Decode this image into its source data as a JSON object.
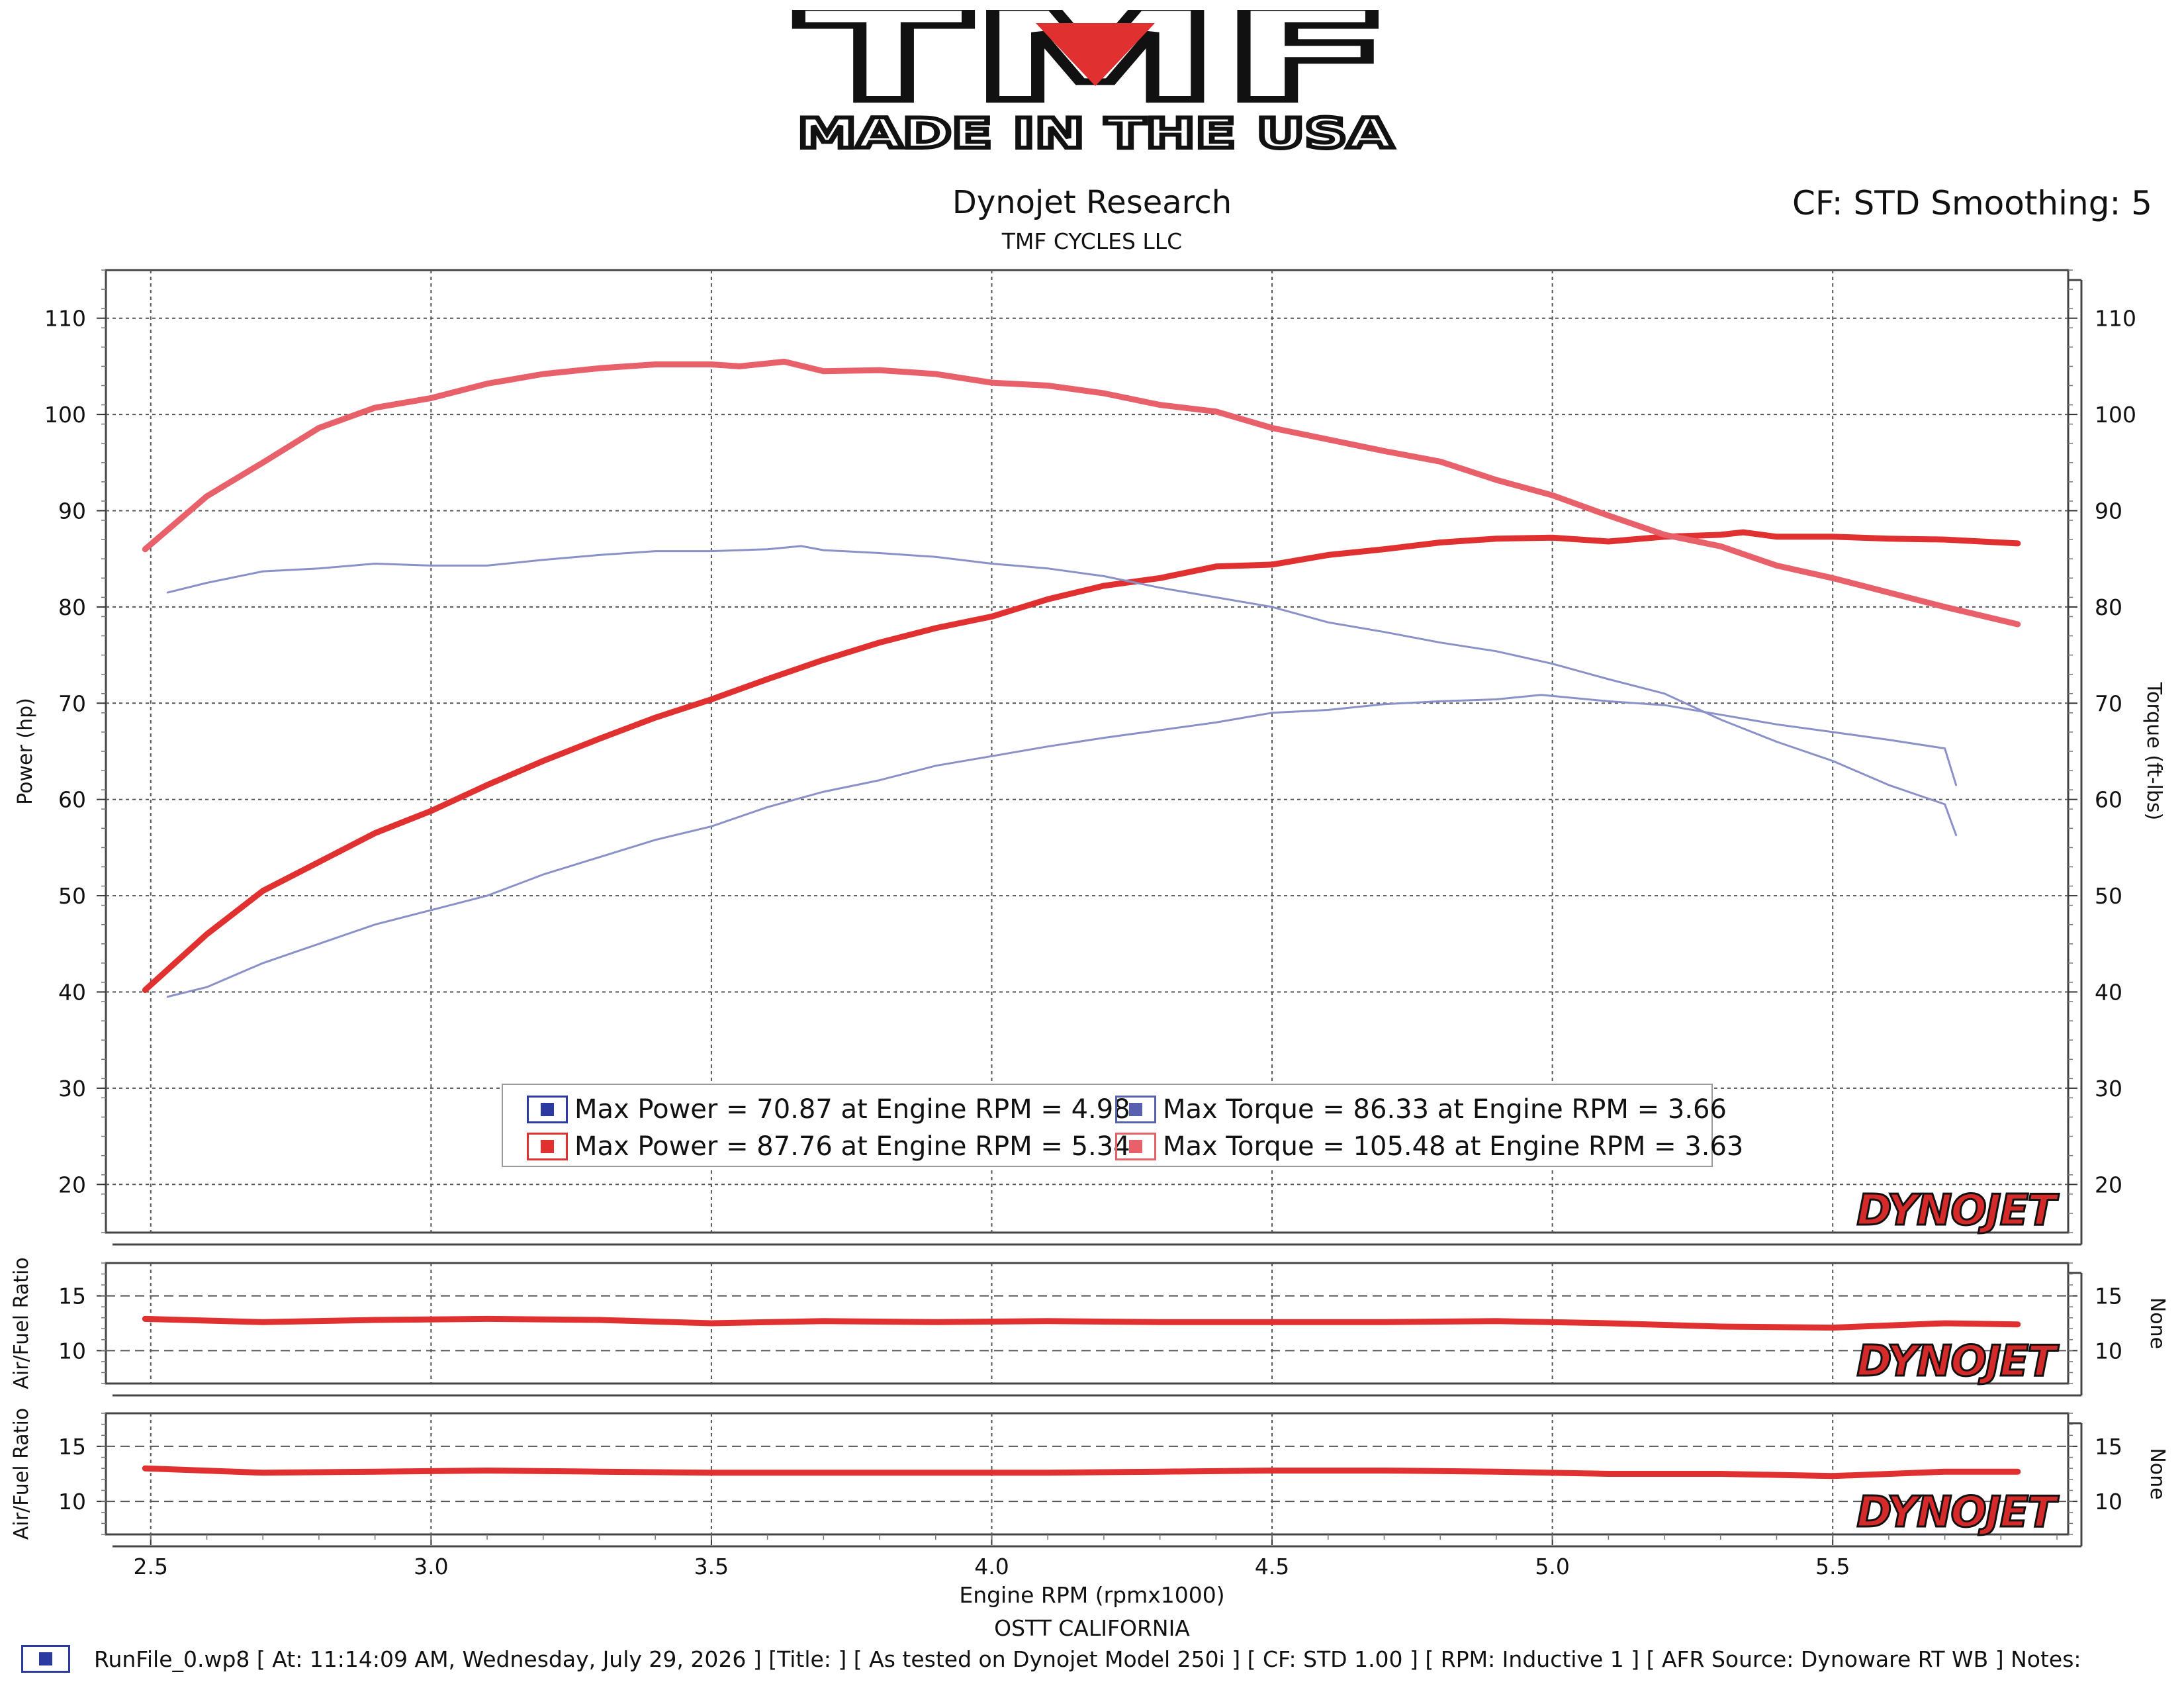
{
  "logo": {
    "letters": "TMF",
    "tagline": "MADE IN THE USA"
  },
  "header": {
    "title": "Dynojet Research",
    "subtitle": "TMF CYCLES LLC",
    "cf_info": "CF: STD Smoothing: 5"
  },
  "watermark": {
    "text": "DYNOJET"
  },
  "colors": {
    "blue_run": "#2a3aa0",
    "red_run": "#e03030",
    "blue_torque": "#8a90c8",
    "red_torque": "#e8606a",
    "grid": "#555555"
  },
  "legend": {
    "items": [
      {
        "text": "Max Power = 70.87 at Engine RPM = 4.98",
        "color": "#2a3aa0"
      },
      {
        "text": "Max Torque = 86.33 at Engine RPM = 3.66",
        "color": "#5a60b0"
      },
      {
        "text": "Max Power = 87.76 at Engine RPM = 5.34",
        "color": "#e03030"
      },
      {
        "text": "Max Torque = 105.48 at Engine RPM = 3.63",
        "color": "#e8606a"
      }
    ]
  },
  "chart_data": [
    {
      "type": "line",
      "panel": "main",
      "xlabel": "Engine RPM (rpmx1000)",
      "ylabel": "Power (hp)",
      "ylabel_right": "Torque (ft-lbs)",
      "xlim": [
        2.42,
        5.92
      ],
      "ylim": [
        15,
        115
      ],
      "xticks": [
        2.5,
        3.0,
        3.5,
        4.0,
        4.5,
        5.0,
        5.5
      ],
      "yticks": [
        20,
        30,
        40,
        50,
        60,
        70,
        80,
        90,
        100,
        110
      ],
      "grid": true,
      "legend_position": "bottom-center",
      "series": [
        {
          "role": "power",
          "color": "#e03030",
          "width": 9,
          "x": [
            2.49,
            2.6,
            2.7,
            2.8,
            2.9,
            3.0,
            3.1,
            3.2,
            3.3,
            3.4,
            3.5,
            3.6,
            3.7,
            3.8,
            3.9,
            4.0,
            4.1,
            4.2,
            4.3,
            4.4,
            4.5,
            4.6,
            4.7,
            4.8,
            4.9,
            5.0,
            5.1,
            5.2,
            5.3,
            5.34,
            5.4,
            5.5,
            5.6,
            5.7,
            5.83
          ],
          "y": [
            40.2,
            46,
            50.5,
            53.5,
            56.5,
            58.8,
            61.5,
            64,
            66.3,
            68.5,
            70.4,
            72.5,
            74.5,
            76.3,
            77.8,
            79,
            80.8,
            82.2,
            83,
            84.2,
            84.4,
            85.4,
            86,
            86.7,
            87.1,
            87.2,
            86.8,
            87.3,
            87.5,
            87.76,
            87.3,
            87.3,
            87.1,
            87,
            86.6
          ]
        },
        {
          "role": "torque",
          "color": "#e8606a",
          "width": 9,
          "x": [
            2.49,
            2.6,
            2.7,
            2.8,
            2.9,
            3.0,
            3.1,
            3.2,
            3.3,
            3.4,
            3.5,
            3.55,
            3.63,
            3.7,
            3.8,
            3.9,
            4.0,
            4.1,
            4.2,
            4.3,
            4.4,
            4.5,
            4.6,
            4.7,
            4.8,
            4.9,
            5.0,
            5.1,
            5.2,
            5.3,
            5.4,
            5.5,
            5.6,
            5.7,
            5.83
          ],
          "y": [
            86,
            91.5,
            95,
            98.6,
            100.7,
            101.7,
            103.2,
            104.2,
            104.8,
            105.2,
            105.2,
            105,
            105.48,
            104.5,
            104.6,
            104.2,
            103.3,
            103,
            102.2,
            101,
            100.3,
            98.6,
            97.4,
            96.2,
            95.1,
            93.2,
            91.6,
            89.5,
            87.5,
            86.3,
            84.3,
            83,
            81.5,
            80,
            78.2
          ]
        },
        {
          "role": "power",
          "color": "#8a90c8",
          "width": 3,
          "x": [
            2.53,
            2.6,
            2.7,
            2.8,
            2.9,
            3.0,
            3.1,
            3.2,
            3.3,
            3.4,
            3.5,
            3.6,
            3.7,
            3.8,
            3.9,
            4.0,
            4.1,
            4.2,
            4.3,
            4.4,
            4.5,
            4.6,
            4.7,
            4.8,
            4.9,
            4.98,
            5.1,
            5.2,
            5.3,
            5.4,
            5.5,
            5.6,
            5.7,
            5.72
          ],
          "y": [
            39.5,
            40.5,
            43,
            45,
            47,
            48.5,
            50,
            52.2,
            54,
            55.8,
            57.2,
            59.2,
            60.8,
            62,
            63.5,
            64.5,
            65.5,
            66.4,
            67.2,
            68,
            69,
            69.3,
            69.9,
            70.2,
            70.4,
            70.87,
            70.2,
            69.8,
            68.8,
            67.8,
            67,
            66.2,
            65.3,
            61.5
          ]
        },
        {
          "role": "torque",
          "color": "#8a90c8",
          "width": 3,
          "x": [
            2.53,
            2.6,
            2.7,
            2.8,
            2.9,
            3.0,
            3.1,
            3.2,
            3.3,
            3.4,
            3.5,
            3.6,
            3.66,
            3.7,
            3.8,
            3.9,
            4.0,
            4.1,
            4.2,
            4.3,
            4.4,
            4.5,
            4.6,
            4.7,
            4.8,
            4.9,
            5.0,
            5.1,
            5.2,
            5.3,
            5.4,
            5.5,
            5.6,
            5.7,
            5.72
          ],
          "y": [
            81.5,
            82.5,
            83.7,
            84,
            84.5,
            84.3,
            84.3,
            84.9,
            85.4,
            85.8,
            85.8,
            86,
            86.33,
            85.9,
            85.6,
            85.2,
            84.5,
            84,
            83.2,
            82,
            81,
            80,
            78.4,
            77.4,
            76.3,
            75.4,
            74.1,
            72.5,
            71,
            68.3,
            66,
            64,
            61.5,
            59.5,
            56.3
          ]
        }
      ]
    },
    {
      "type": "line",
      "panel": "afr-1",
      "ylabel": "Air/Fuel Ratio",
      "ylabel_right": "None",
      "xlim": [
        2.42,
        5.92
      ],
      "ylim": [
        7,
        18
      ],
      "yticks": [
        10,
        15
      ],
      "grid": true,
      "series": [
        {
          "role": "afr",
          "color": "#e03030",
          "width": 9,
          "x": [
            2.49,
            2.7,
            2.9,
            3.1,
            3.3,
            3.5,
            3.7,
            3.9,
            4.1,
            4.3,
            4.5,
            4.7,
            4.9,
            5.1,
            5.3,
            5.5,
            5.7,
            5.83
          ],
          "y": [
            12.9,
            12.6,
            12.8,
            12.9,
            12.8,
            12.5,
            12.7,
            12.6,
            12.7,
            12.6,
            12.6,
            12.6,
            12.7,
            12.5,
            12.2,
            12.1,
            12.5,
            12.4
          ]
        }
      ]
    },
    {
      "type": "line",
      "panel": "afr-2",
      "ylabel": "Air/Fuel Ratio",
      "ylabel_right": "None",
      "xlim": [
        2.42,
        5.92
      ],
      "ylim": [
        7,
        18
      ],
      "yticks": [
        10,
        15
      ],
      "grid": true,
      "series": [
        {
          "role": "afr",
          "color": "#e03030",
          "width": 9,
          "x": [
            2.49,
            2.7,
            2.9,
            3.1,
            3.3,
            3.5,
            3.7,
            3.9,
            4.1,
            4.3,
            4.5,
            4.7,
            4.9,
            5.1,
            5.3,
            5.5,
            5.7,
            5.83
          ],
          "y": [
            13.0,
            12.6,
            12.7,
            12.8,
            12.7,
            12.6,
            12.6,
            12.6,
            12.6,
            12.7,
            12.8,
            12.8,
            12.7,
            12.5,
            12.5,
            12.3,
            12.7,
            12.7
          ]
        }
      ]
    }
  ],
  "footer": {
    "location": "OSTT CALIFORNIA",
    "runfile": "RunFile_0.wp8 [ At: 11:14:09 AM, Wednesday, July 29, 2026 ] [Title: ]  [ As tested on Dynojet Model 250i ] [ CF: STD 1.00 ] [ RPM: Inductive 1 ] [ AFR Source: Dynoware RT WB ] Notes:"
  }
}
